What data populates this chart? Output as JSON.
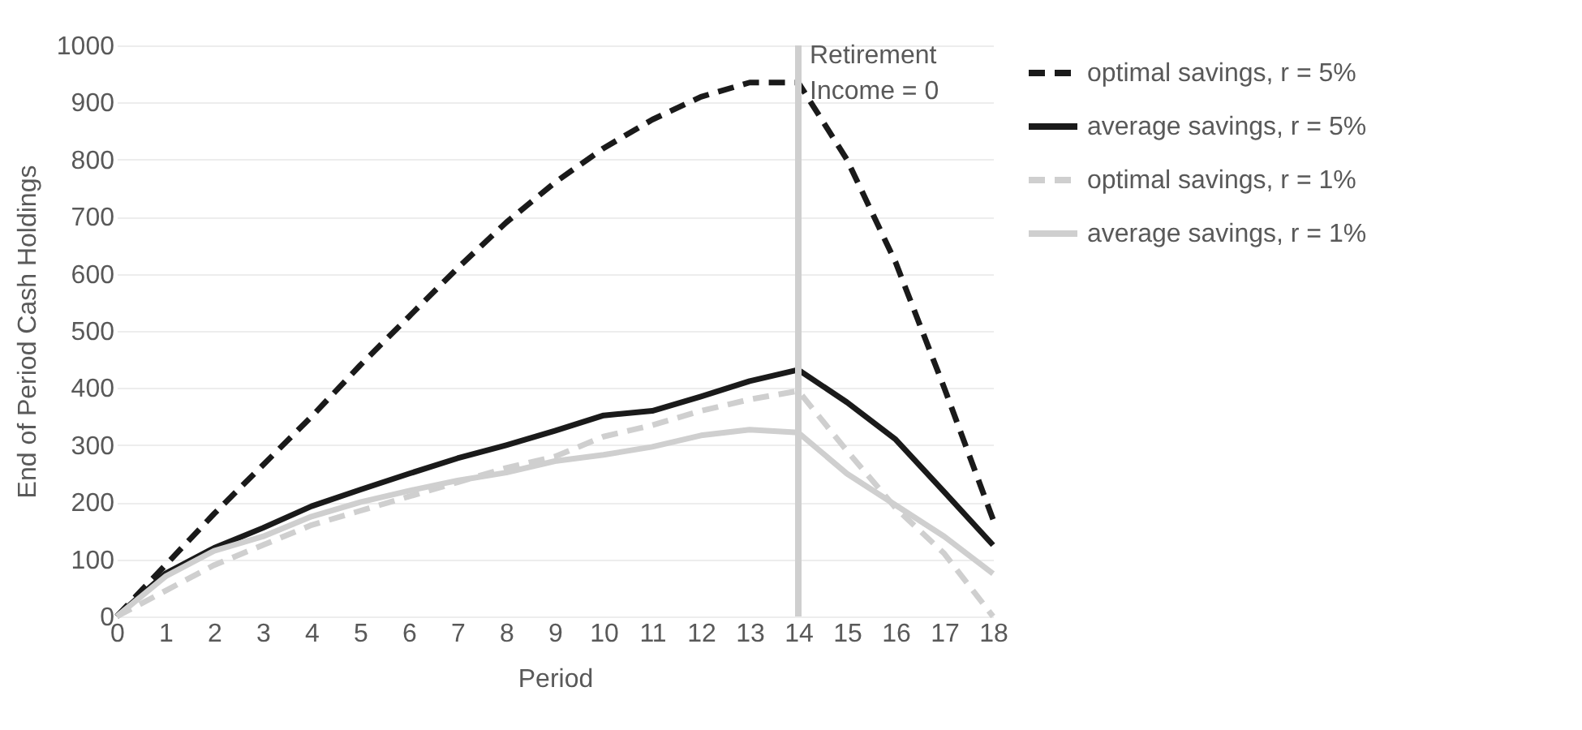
{
  "chart_data": {
    "type": "line",
    "xlabel": "Period",
    "ylabel": "End of Period Cash Holdings",
    "x": [
      0,
      1,
      2,
      3,
      4,
      5,
      6,
      7,
      8,
      9,
      10,
      11,
      12,
      13,
      14,
      15,
      16,
      17,
      18
    ],
    "xlim": [
      0,
      18
    ],
    "xticks": [
      0,
      1,
      2,
      3,
      4,
      5,
      6,
      7,
      8,
      9,
      10,
      11,
      12,
      13,
      14,
      15,
      16,
      17,
      18
    ],
    "ylim": [
      0,
      1000
    ],
    "yticks": [
      0,
      100,
      200,
      300,
      400,
      500,
      600,
      700,
      800,
      900,
      {
        "value": 1000,
        "label": "1000"
      }
    ],
    "grid": "y",
    "legend": "right",
    "marker": "none",
    "series": [
      {
        "name": "optimal savings, r = 5%",
        "color": "#1a1a1a",
        "line_style": "dashed",
        "values": [
          0,
          90,
          180,
          265,
          350,
          440,
          525,
          610,
          690,
          760,
          820,
          870,
          910,
          935,
          935,
          800,
          620,
          400,
          170
        ]
      },
      {
        "name": "average savings, r = 5%",
        "color": "#1a1a1a",
        "line_style": "solid",
        "values": [
          0,
          75,
          120,
          155,
          193,
          222,
          250,
          277,
          300,
          325,
          352,
          360,
          385,
          412,
          432,
          375,
          310,
          218,
          125
        ]
      },
      {
        "name": "optimal savings, r = 1%",
        "color": "#cfcfcf",
        "line_style": "dashed",
        "values": [
          0,
          45,
          90,
          125,
          160,
          185,
          210,
          235,
          260,
          280,
          315,
          335,
          360,
          380,
          395,
          290,
          190,
          110,
          0
        ]
      },
      {
        "name": "average savings, r = 1%",
        "color": "#cfcfcf",
        "line_style": "solid",
        "values": [
          0,
          70,
          115,
          140,
          175,
          200,
          220,
          238,
          252,
          272,
          283,
          297,
          317,
          327,
          322,
          250,
          195,
          140,
          75
        ]
      }
    ],
    "ref_lines": [
      {
        "axis": "x",
        "value": 14,
        "color": "#cfcfcf"
      }
    ],
    "annotations": [
      "Retirement Income = 0"
    ]
  }
}
